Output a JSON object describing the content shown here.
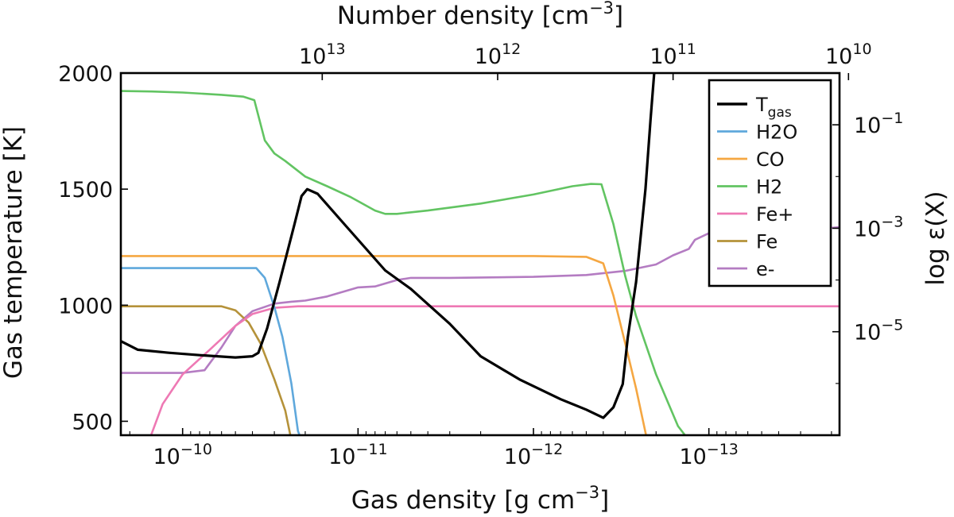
{
  "chart_data": {
    "type": "line",
    "title": "",
    "x_axis": {
      "label_main": "Gas density [g cm",
      "label_exp": "−3",
      "label_end": "]",
      "scale": "log",
      "reversed": true,
      "range": [
        2.25e-10,
        1.8e-14
      ],
      "ticks": [
        {
          "base": "10",
          "exp": "−10",
          "value": 1e-10
        },
        {
          "base": "10",
          "exp": "−11",
          "value": 1e-11
        },
        {
          "base": "10",
          "exp": "−12",
          "value": 1e-12
        },
        {
          "base": "10",
          "exp": "−13",
          "value": 1e-13
        }
      ]
    },
    "top_axis": {
      "label_main": "Number density [cm",
      "label_exp": "−3",
      "label_end": "]",
      "scale": "log",
      "ticks": [
        {
          "base": "10",
          "exp": "13",
          "value": 10000000000000.0,
          "density": 1.6e-11
        },
        {
          "base": "10",
          "exp": "12",
          "value": 1000000000000.0,
          "density": 1.6e-12
        },
        {
          "base": "10",
          "exp": "11",
          "value": 100000000000.0,
          "density": 1.6e-13
        },
        {
          "base": "10",
          "exp": "10",
          "value": 10000000000.0,
          "density": 1.6e-14
        }
      ]
    },
    "y_left": {
      "label": "Gas temperature [K]",
      "range": [
        440,
        2000
      ],
      "ticks": [
        "500",
        "1000",
        "1500",
        "2000"
      ]
    },
    "y_right": {
      "label": "log ε(X)",
      "scale": "log",
      "range": [
        1e-07,
        1
      ],
      "ticks": [
        {
          "base": "10",
          "exp": "−1",
          "value": 0.1
        },
        {
          "base": "10",
          "exp": "−3",
          "value": 0.001
        },
        {
          "base": "10",
          "exp": "−5",
          "value": 1e-05
        }
      ]
    },
    "legend": {
      "position": "top-right",
      "entries": [
        {
          "label": "T",
          "sub": "gas",
          "color": "#000000"
        },
        {
          "label": "H2O",
          "sub": "",
          "color": "#5fa8dc"
        },
        {
          "label": "CO",
          "sub": "",
          "color": "#f5a742"
        },
        {
          "label": "H2",
          "sub": "",
          "color": "#62c462"
        },
        {
          "label": "Fe+",
          "sub": "",
          "color": "#ee79b4"
        },
        {
          "label": "Fe",
          "sub": "",
          "color": "#b5923a"
        },
        {
          "label": "e-",
          "sub": "",
          "color": "#b47cc2"
        }
      ]
    },
    "series": [
      {
        "name": "T",
        "axis": "left",
        "color": "#000000",
        "points": [
          [
            2.25e-10,
            845
          ],
          [
            1.8e-10,
            808
          ],
          [
            1.2e-10,
            795
          ],
          [
            8e-11,
            785
          ],
          [
            5e-11,
            775
          ],
          [
            4e-11,
            780
          ],
          [
            3.7e-11,
            795
          ],
          [
            3.3e-11,
            900
          ],
          [
            2.8e-11,
            1100
          ],
          [
            2.3e-11,
            1350
          ],
          [
            2.1e-11,
            1470
          ],
          [
            1.95e-11,
            1500
          ],
          [
            1.7e-11,
            1480
          ],
          [
            1.2e-11,
            1350
          ],
          [
            7e-12,
            1150
          ],
          [
            5e-12,
            1070
          ],
          [
            3e-12,
            920
          ],
          [
            2e-12,
            780
          ],
          [
            1.2e-12,
            680
          ],
          [
            7e-13,
            595
          ],
          [
            5e-13,
            550
          ],
          [
            4e-13,
            515
          ],
          [
            3.5e-13,
            560
          ],
          [
            3.1e-13,
            660
          ],
          [
            2.9e-13,
            860
          ],
          [
            2.6e-13,
            1100
          ],
          [
            2.3e-13,
            1500
          ],
          [
            2.15e-13,
            1800
          ],
          [
            2.05e-13,
            2000
          ]
        ]
      },
      {
        "name": "H2O",
        "axis": "right",
        "color": "#5fa8dc",
        "points": [
          [
            2.25e-10,
            0.00017
          ],
          [
            1.5e-10,
            0.00017
          ],
          [
            1e-10,
            0.00017
          ],
          [
            5e-11,
            0.00017
          ],
          [
            3.8e-11,
            0.00017
          ],
          [
            3.4e-11,
            0.00011
          ],
          [
            3e-11,
            3e-05
          ],
          [
            2.7e-11,
            8e-06
          ],
          [
            2.4e-11,
            1e-06
          ],
          [
            2.2e-11,
            1.2e-07
          ],
          [
            2.1e-11,
            8e-08
          ]
        ]
      },
      {
        "name": "CO",
        "axis": "right",
        "color": "#f5a742",
        "points": [
          [
            2.25e-10,
            0.00029
          ],
          [
            1e-10,
            0.00029
          ],
          [
            1e-11,
            0.00029
          ],
          [
            1e-12,
            0.00029
          ],
          [
            5e-13,
            0.00028
          ],
          [
            4e-13,
            0.00021
          ],
          [
            3.5e-13,
            5e-05
          ],
          [
            3e-13,
            6e-06
          ],
          [
            2.6e-13,
            8e-07
          ],
          [
            2.25e-13,
            8e-08
          ]
        ]
      },
      {
        "name": "H2",
        "axis": "right",
        "color": "#62c462",
        "points": [
          [
            2.25e-10,
            0.45
          ],
          [
            1.5e-10,
            0.44
          ],
          [
            1e-10,
            0.42
          ],
          [
            6e-11,
            0.38
          ],
          [
            4.5e-11,
            0.35
          ],
          [
            3.9e-11,
            0.3
          ],
          [
            3.7e-11,
            0.15
          ],
          [
            3.4e-11,
            0.05
          ],
          [
            3e-11,
            0.028
          ],
          [
            2.6e-11,
            0.02
          ],
          [
            2e-11,
            0.01
          ],
          [
            1.5e-11,
            0.0065
          ],
          [
            1.1e-11,
            0.004
          ],
          [
            8e-12,
            0.0022
          ],
          [
            7e-12,
            0.0019
          ],
          [
            6e-12,
            0.0019
          ],
          [
            4e-12,
            0.0022
          ],
          [
            2e-12,
            0.003
          ],
          [
            1e-12,
            0.0045
          ],
          [
            6e-13,
            0.0065
          ],
          [
            4.7e-13,
            0.0072
          ],
          [
            4.1e-13,
            0.0071
          ],
          [
            3.5e-13,
            0.0012
          ],
          [
            3e-13,
            0.00012
          ],
          [
            2.6e-13,
            2e-05
          ],
          [
            2e-13,
            1.5e-06
          ],
          [
            1.5e-13,
            1.5e-07
          ],
          [
            1.3e-13,
            8e-08
          ]
        ]
      },
      {
        "name": "Fe+",
        "axis": "right",
        "color": "#ee79b4",
        "points": [
          [
            1.55e-10,
            8e-08
          ],
          [
            1.3e-10,
            4e-07
          ],
          [
            1e-10,
            1.5e-06
          ],
          [
            7e-11,
            4.5e-06
          ],
          [
            5e-11,
            1.3e-05
          ],
          [
            4e-11,
            2.2e-05
          ],
          [
            3e-11,
            2.9e-05
          ],
          [
            2.2e-11,
            3.1e-05
          ],
          [
            1e-11,
            3.1e-05
          ],
          [
            1e-12,
            3.1e-05
          ],
          [
            1e-13,
            3.1e-05
          ],
          [
            1.8e-14,
            3.1e-05
          ]
        ]
      },
      {
        "name": "Fe",
        "axis": "right",
        "color": "#b5923a",
        "points": [
          [
            2.25e-10,
            3.1e-05
          ],
          [
            1e-10,
            3.1e-05
          ],
          [
            6e-11,
            3.1e-05
          ],
          [
            5e-11,
            2.6e-05
          ],
          [
            4.2e-11,
            1.5e-05
          ],
          [
            3.6e-11,
            6e-06
          ],
          [
            3e-11,
            1.2e-06
          ],
          [
            2.6e-11,
            3e-07
          ],
          [
            2.4e-11,
            8e-08
          ]
        ]
      },
      {
        "name": "e-",
        "axis": "right",
        "color": "#b47cc2",
        "points": [
          [
            2.25e-10,
            1.6e-06
          ],
          [
            1e-10,
            1.6e-06
          ],
          [
            7.5e-11,
            1.8e-06
          ],
          [
            6e-11,
            5e-06
          ],
          [
            5e-11,
            1.3e-05
          ],
          [
            4e-11,
            2.5e-05
          ],
          [
            3e-11,
            3.5e-05
          ],
          [
            2.4e-11,
            3.8e-05
          ],
          [
            2e-11,
            4e-05
          ],
          [
            1.5e-11,
            4.8e-05
          ],
          [
            1.2e-11,
            6e-05
          ],
          [
            1e-11,
            7.2e-05
          ],
          [
            8e-12,
            7.5e-05
          ],
          [
            6e-12,
            0.0001
          ],
          [
            5e-12,
            0.00011
          ],
          [
            3e-12,
            0.00011
          ],
          [
            1e-12,
            0.000115
          ],
          [
            5e-13,
            0.000125
          ],
          [
            3e-13,
            0.00015
          ],
          [
            2e-13,
            0.0002
          ],
          [
            1.6e-13,
            0.0003
          ],
          [
            1.3e-13,
            0.0004
          ],
          [
            1.2e-13,
            0.0006
          ],
          [
            1e-13,
            0.0008
          ],
          [
            5e-14,
            0.00085
          ],
          [
            3e-14,
            0.0009
          ],
          [
            1.8e-14,
            0.00105
          ]
        ]
      }
    ]
  }
}
